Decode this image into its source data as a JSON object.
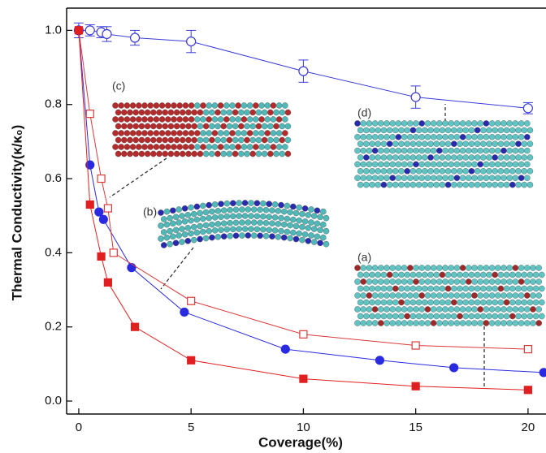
{
  "chart_data": {
    "type": "line",
    "xlabel": "Coverage(%)",
    "ylabel": "Thermal Conductivity(κ/κ₀)",
    "xlim": [
      -0.54,
      20.8
    ],
    "ylim": [
      -0.035,
      1.06
    ],
    "xticks": [
      0,
      5,
      10,
      15,
      20
    ],
    "yticks": [
      {
        "value": 0,
        "label": "0.0"
      },
      0.2,
      0.4,
      0.6,
      0.8,
      {
        "value": 1,
        "label": "1.0"
      }
    ],
    "series": [
      {
        "color": "#3b3bd6",
        "marker": "circle",
        "filled": false,
        "x": [
          0,
          0.5,
          1,
          1.25,
          2.5,
          5,
          10,
          15,
          20
        ],
        "values": [
          1.0,
          1.0,
          0.995,
          0.99,
          0.98,
          0.97,
          0.89,
          0.82,
          0.79
        ],
        "errors": [
          0.02,
          0.015,
          0.015,
          0.02,
          0.02,
          0.03,
          0.03,
          0.03,
          0.015
        ]
      },
      {
        "color": "#2a2ae0",
        "marker": "circle",
        "filled": true,
        "x": [
          0,
          0.5,
          0.9,
          1.1,
          2.35,
          4.7,
          9.2,
          13.4,
          16.7,
          20.7
        ],
        "values": [
          1.0,
          0.637,
          0.51,
          0.49,
          0.36,
          0.24,
          0.14,
          0.11,
          0.09,
          0.077
        ]
      },
      {
        "color": "#d83a3a",
        "marker": "square",
        "filled": false,
        "x": [
          0,
          0.5,
          1,
          1.3,
          1.55,
          5,
          10,
          15,
          20
        ],
        "values": [
          1.0,
          0.775,
          0.6,
          0.52,
          0.4,
          0.27,
          0.18,
          0.15,
          0.14
        ]
      },
      {
        "color": "#e02020",
        "marker": "square",
        "filled": true,
        "x": [
          0,
          0.5,
          1,
          1.3,
          2.5,
          5,
          10,
          15,
          20
        ],
        "values": [
          1.0,
          0.53,
          0.39,
          0.32,
          0.2,
          0.11,
          0.06,
          0.04,
          0.03
        ]
      }
    ],
    "annotations": [
      "(a)",
      "(b)",
      "(c)",
      "(d)"
    ]
  }
}
